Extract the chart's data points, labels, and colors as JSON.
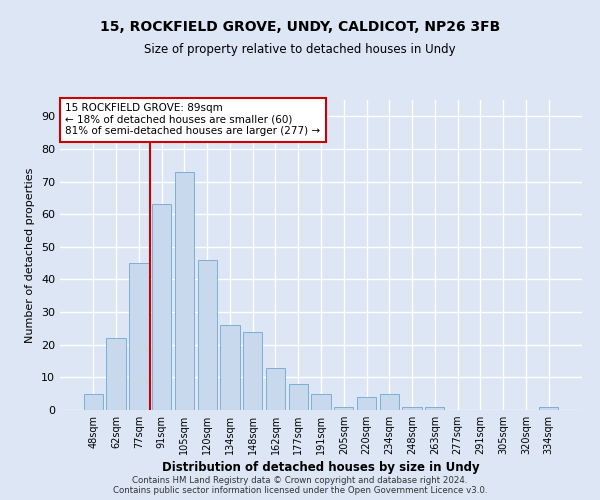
{
  "title1": "15, ROCKFIELD GROVE, UNDY, CALDICOT, NP26 3FB",
  "title2": "Size of property relative to detached houses in Undy",
  "xlabel": "Distribution of detached houses by size in Undy",
  "ylabel": "Number of detached properties",
  "categories": [
    "48sqm",
    "62sqm",
    "77sqm",
    "91sqm",
    "105sqm",
    "120sqm",
    "134sqm",
    "148sqm",
    "162sqm",
    "177sqm",
    "191sqm",
    "205sqm",
    "220sqm",
    "234sqm",
    "248sqm",
    "263sqm",
    "277sqm",
    "291sqm",
    "305sqm",
    "320sqm",
    "334sqm"
  ],
  "values": [
    5,
    22,
    45,
    63,
    73,
    46,
    26,
    24,
    13,
    8,
    5,
    1,
    4,
    5,
    1,
    1,
    0,
    0,
    0,
    0,
    1
  ],
  "bar_color": "#c8d9ed",
  "bar_edge_color": "#7bafd4",
  "background_color": "#dce6f5",
  "plot_bg_color": "#dce6f5",
  "grid_color": "#ffffff",
  "annotation_text_line1": "15 ROCKFIELD GROVE: 89sqm",
  "annotation_text_line2": "← 18% of detached houses are smaller (60)",
  "annotation_text_line3": "81% of semi-detached houses are larger (277) →",
  "annotation_box_color": "#ffffff",
  "annotation_box_edge_color": "#cc0000",
  "vline_color": "#cc0000",
  "vline_x_index": 3,
  "ylim": [
    0,
    95
  ],
  "yticks": [
    0,
    10,
    20,
    30,
    40,
    50,
    60,
    70,
    80,
    90
  ],
  "footnote1": "Contains HM Land Registry data © Crown copyright and database right 2024.",
  "footnote2": "Contains public sector information licensed under the Open Government Licence v3.0."
}
